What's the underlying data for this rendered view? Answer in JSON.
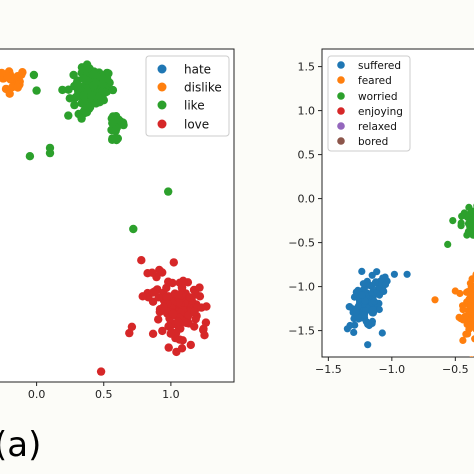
{
  "caption": "(a)",
  "colors": {
    "blue": "#1f77b4",
    "orange": "#ff7f0e",
    "green": "#2ca02c",
    "red": "#d62728",
    "purple": "#9467bd",
    "brown": "#8c564b"
  },
  "chart_data": [
    {
      "type": "scatter",
      "title": "",
      "xlabel": "",
      "ylabel": "",
      "xlim": [
        -0.28,
        1.47
      ],
      "ylim": [
        -2.25,
        0.95
      ],
      "xticks": [
        0.0,
        0.5,
        1.0
      ],
      "xtick_labels": [
        "0.0",
        "0.5",
        "1.0"
      ],
      "yticks": [],
      "grid": false,
      "legend": "top-right",
      "series": [
        {
          "name": "hate",
          "color": "#1f77b4",
          "clusters": []
        },
        {
          "name": "dislike",
          "color": "#ff7f0e",
          "clusters": [
            {
              "cx": -0.18,
              "cy": 0.65,
              "sx": 0.06,
              "sy": 0.06,
              "n": 18
            }
          ],
          "points": [
            [
              -0.26,
              0.72
            ],
            [
              -0.2,
              0.52
            ],
            [
              -0.14,
              0.58
            ]
          ]
        },
        {
          "name": "like",
          "color": "#2ca02c",
          "clusters": [
            {
              "cx": 0.42,
              "cy": 0.6,
              "sx": 0.07,
              "sy": 0.08,
              "n": 90
            },
            {
              "cx": 0.33,
              "cy": 0.45,
              "sx": 0.06,
              "sy": 0.1,
              "n": 30
            },
            {
              "cx": 0.6,
              "cy": 0.2,
              "sx": 0.04,
              "sy": 0.1,
              "n": 20
            }
          ],
          "points": [
            [
              0.1,
              0.0
            ],
            [
              0.1,
              -0.05
            ],
            [
              -0.05,
              -0.08
            ],
            [
              -0.02,
              0.7
            ],
            [
              0.0,
              0.55
            ],
            [
              0.98,
              -0.42
            ],
            [
              0.72,
              -0.78
            ]
          ]
        },
        {
          "name": "love",
          "color": "#d62728",
          "clusters": [
            {
              "cx": 1.07,
              "cy": -1.5,
              "sx": 0.07,
              "sy": 0.09,
              "n": 90
            },
            {
              "cx": 0.95,
              "cy": -1.38,
              "sx": 0.08,
              "sy": 0.12,
              "n": 25
            },
            {
              "cx": 1.08,
              "cy": -1.75,
              "sx": 0.1,
              "sy": 0.08,
              "n": 25
            }
          ],
          "points": [
            [
              0.48,
              -2.15
            ],
            [
              0.69,
              -1.78
            ],
            [
              0.71,
              -1.72
            ],
            [
              1.25,
              -1.8
            ],
            [
              0.86,
              -1.2
            ],
            [
              0.78,
              -1.08
            ]
          ]
        }
      ]
    },
    {
      "type": "scatter",
      "title": "",
      "xlabel": "",
      "ylabel": "",
      "xlim": [
        -1.55,
        -0.29
      ],
      "ylim": [
        -1.8,
        1.7
      ],
      "xticks": [
        -1.5,
        -1.0,
        -0.5
      ],
      "xtick_labels": [
        "−1.5",
        "−1.0",
        "−0.5"
      ],
      "yticks": [
        1.5,
        1.0,
        0.5,
        0.0,
        -0.5,
        -1.0,
        -1.5
      ],
      "ytick_labels": [
        "1.5",
        "1.0",
        "0.5",
        "0.0",
        "−0.5",
        "−1.0",
        "−1.5"
      ],
      "grid": false,
      "legend": "top-left",
      "series": [
        {
          "name": "suffered",
          "color": "#1f77b4",
          "clusters": [
            {
              "cx": -1.21,
              "cy": -1.22,
              "sx": 0.06,
              "sy": 0.12,
              "n": 95
            },
            {
              "cx": -1.1,
              "cy": -1.02,
              "sx": 0.04,
              "sy": 0.1,
              "n": 20
            }
          ],
          "points": [
            [
              -1.35,
              -1.48
            ],
            [
              -0.98,
              -0.86
            ],
            [
              -0.88,
              -0.86
            ],
            [
              -1.19,
              -1.66
            ],
            [
              -1.3,
              -1.52
            ]
          ]
        },
        {
          "name": "feared",
          "color": "#ff7f0e",
          "clusters": [
            {
              "cx": -0.35,
              "cy": -1.23,
              "sx": 0.04,
              "sy": 0.15,
              "n": 120
            }
          ],
          "points": [
            [
              -0.66,
              -1.15
            ],
            [
              -0.5,
              -1.05
            ],
            [
              -0.47,
              -1.35
            ]
          ]
        },
        {
          "name": "worried",
          "color": "#2ca02c",
          "clusters": [
            {
              "cx": -0.35,
              "cy": -0.28,
              "sx": 0.05,
              "sy": 0.08,
              "n": 90
            }
          ],
          "points": [
            [
              -0.56,
              -0.52
            ],
            [
              -0.52,
              -0.25
            ],
            [
              -0.45,
              -0.2
            ],
            [
              -0.3,
              0.0
            ],
            [
              -0.33,
              -0.08
            ]
          ]
        },
        {
          "name": "enjoying",
          "color": "#d62728",
          "clusters": []
        },
        {
          "name": "relaxed",
          "color": "#9467bd",
          "clusters": []
        },
        {
          "name": "bored",
          "color": "#8c564b",
          "clusters": []
        }
      ]
    }
  ]
}
